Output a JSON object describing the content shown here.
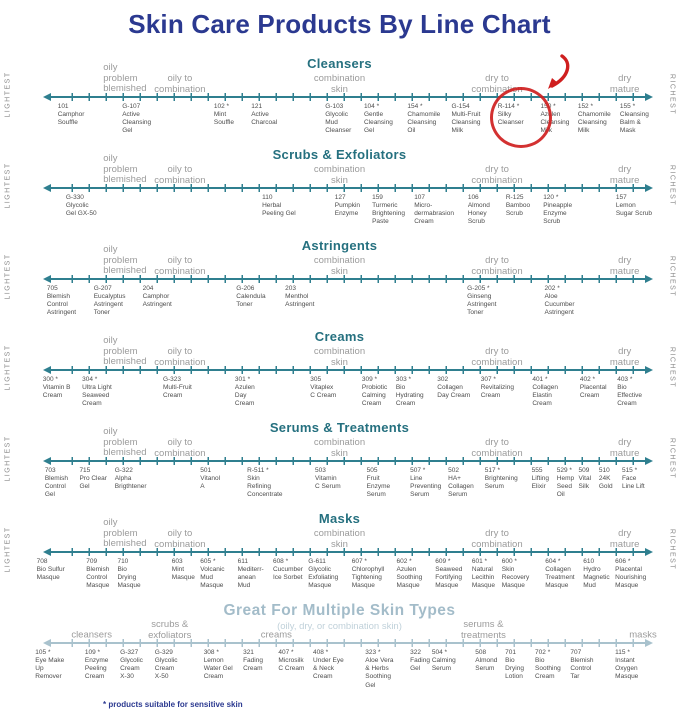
{
  "title": "Skin Care Products By Line Chart",
  "footnote": "* products suitable for sensitive skin",
  "axis_ends": {
    "left": "LIGHTEST",
    "right": "RICHEST"
  },
  "colors": {
    "title_navy": "#2b3990",
    "section_teal": "#25707f",
    "line_teal": "#2f7f8f",
    "zone_gray": "#9b9b9b",
    "product_text": "#4d4d4d",
    "light_blue": "#a3bcc9",
    "highlight_red": "#cf1f1f"
  },
  "annotation": {
    "type": "hand-drawn red circle with curved arrow",
    "section": "Cleansers",
    "highlighted_product": "R-114 *",
    "color": "#cf1f1f"
  },
  "zone_sets": {
    "skin_types": [
      {
        "label": "oily\nproblem\nblemished",
        "x": 15.2,
        "align": "left"
      },
      {
        "label": "oily to\ncombination",
        "x": 26.5
      },
      {
        "label": "combination\nskin",
        "x": 50
      },
      {
        "label": "dry to\ncombination",
        "x": 73.2
      },
      {
        "label": "dry\nmature",
        "x": 92
      }
    ],
    "product_categories": [
      {
        "label": "cleansers",
        "x": 13.5
      },
      {
        "label": "scrubs &\nexfoliators",
        "x": 25
      },
      {
        "label": "creams",
        "x": 40.7
      },
      {
        "label": "serums &\ntreatments",
        "x": 71.2
      },
      {
        "label": "masks",
        "x": 94.7
      }
    ]
  },
  "sections": [
    {
      "title": "Cleansers",
      "zones": "skin_types",
      "axis_ends": true,
      "highlight_product": "R-114 *",
      "products": [
        {
          "id": "101",
          "name": "Camphor\nSouffle",
          "x": 8.5
        },
        {
          "id": "G-107",
          "name": "Active\nCleansing\nGel",
          "x": 18.0
        },
        {
          "id": "102 *",
          "name": "Mint\nSouffle",
          "x": 31.5
        },
        {
          "id": "121",
          "name": "Active\nCharcoal",
          "x": 37.0
        },
        {
          "id": "G-103",
          "name": "Glycolic\nMud\nCleanser",
          "x": 47.9
        },
        {
          "id": "104 *",
          "name": "Gentle\nCleansing\nGel",
          "x": 53.6
        },
        {
          "id": "154 *",
          "name": "Chamomile\nCleansing\nOil",
          "x": 60.0
        },
        {
          "id": "G-154",
          "name": "Multi-Fruit\nCleansing\nMilk",
          "x": 66.5
        },
        {
          "id": "R-114 *",
          "name": "Silky\nCleanser",
          "x": 73.3
        },
        {
          "id": "150 *",
          "name": "Azulen\nCleansing\nMilk",
          "x": 79.6
        },
        {
          "id": "152 *",
          "name": "Chamomile\nCleansing\nMilk",
          "x": 85.1
        },
        {
          "id": "155 *",
          "name": "Cleansing\nBalm &\nMask",
          "x": 91.3
        }
      ]
    },
    {
      "title": "Scrubs & Exfoliators",
      "zones": "skin_types",
      "axis_ends": true,
      "products": [
        {
          "id": "G-330",
          "name": "Glycolic\nGel GX-50",
          "x": 9.7
        },
        {
          "id": "110",
          "name": "Herbal\nPeeling Gel",
          "x": 38.6
        },
        {
          "id": "127",
          "name": "Pumpkin\nEnzyme",
          "x": 49.3
        },
        {
          "id": "159",
          "name": "Turmeric\nBrightening\nPaste",
          "x": 54.8
        },
        {
          "id": "107",
          "name": "Micro-\ndermabrasion\nCream",
          "x": 61.0
        },
        {
          "id": "106",
          "name": "Almond\nHoney\nScrub",
          "x": 68.9
        },
        {
          "id": "R-125",
          "name": "Bamboo\nScrub",
          "x": 74.5
        },
        {
          "id": "120 *",
          "name": "Pineapple\nEnzyme\nScrub",
          "x": 80.0
        },
        {
          "id": "157",
          "name": "Lemon\nSugar Scrub",
          "x": 90.7
        }
      ]
    },
    {
      "title": "Astringents",
      "zones": "skin_types",
      "axis_ends": true,
      "products": [
        {
          "id": "705",
          "name": "Blemish\nControl\nAstringent",
          "x": 6.9
        },
        {
          "id": "G-207",
          "name": "Eucalyptus\nAstringent\nToner",
          "x": 13.8
        },
        {
          "id": "204",
          "name": "Camphor\nAstringent",
          "x": 21.0
        },
        {
          "id": "G-206",
          "name": "Calendula\nToner",
          "x": 34.8
        },
        {
          "id": "203",
          "name": "Menthol\nAstringent",
          "x": 42.0
        },
        {
          "id": "G-205 *",
          "name": "Ginseng\nAstringent\nToner",
          "x": 68.8
        },
        {
          "id": "202 *",
          "name": "Aloe\nCucumber\nAstringent",
          "x": 80.2
        }
      ]
    },
    {
      "title": "Creams",
      "zones": "skin_types",
      "axis_ends": true,
      "products": [
        {
          "id": "300 *",
          "name": "Vitamin B\nCream",
          "x": 6.3
        },
        {
          "id": "304 *",
          "name": "Ultra Light\nSeaweed\nCream",
          "x": 12.1
        },
        {
          "id": "G-323",
          "name": "Multi-Fruit\nCream",
          "x": 24.0
        },
        {
          "id": "301 *",
          "name": "Azulen\nDay\nCream",
          "x": 34.6
        },
        {
          "id": "305",
          "name": "Vitaplex\nC Cream",
          "x": 45.7
        },
        {
          "id": "309 *",
          "name": "Probiotic\nCalming\nCream",
          "x": 53.3
        },
        {
          "id": "303 *",
          "name": "Bio\nHydrating\nCream",
          "x": 58.3
        },
        {
          "id": "302",
          "name": "Collagen\nDay Cream",
          "x": 64.4
        },
        {
          "id": "307 *",
          "name": "Revitalizing\nCream",
          "x": 70.8
        },
        {
          "id": "401 *",
          "name": "Collagen\nElastin\nCream",
          "x": 78.4
        },
        {
          "id": "402 *",
          "name": "Placental\nCream",
          "x": 85.4
        },
        {
          "id": "403 *",
          "name": "Bio\nEffective\nCream",
          "x": 90.9
        }
      ]
    },
    {
      "title": "Serums & Treatments",
      "zones": "skin_types",
      "axis_ends": true,
      "products": [
        {
          "id": "703",
          "name": "Blemish\nControl\nGel",
          "x": 6.6
        },
        {
          "id": "715",
          "name": "Pro Clear\nGel",
          "x": 11.7
        },
        {
          "id": "G-322",
          "name": "Alpha\nBrigthtener",
          "x": 16.9
        },
        {
          "id": "501",
          "name": "Vitanol\nA",
          "x": 29.5
        },
        {
          "id": "R-511 *",
          "name": "Skin\nRefining\nConcentrate",
          "x": 36.4
        },
        {
          "id": "503",
          "name": "Vitamin\nC Serum",
          "x": 46.4
        },
        {
          "id": "505",
          "name": "Fruit\nEnzyme\nSerum",
          "x": 54.0
        },
        {
          "id": "507 *",
          "name": "Line\nPreventing\nSerum",
          "x": 60.4
        },
        {
          "id": "502",
          "name": "HA+\nCollagen\nSerum",
          "x": 66.0
        },
        {
          "id": "517 *",
          "name": "Brightening\nSerum",
          "x": 71.4
        },
        {
          "id": "555",
          "name": "Lifting\nElixir",
          "x": 78.3
        },
        {
          "id": "529 *",
          "name": "Hemp\nSeed\nOil",
          "x": 82.0
        },
        {
          "id": "509",
          "name": "Vital\nSilk",
          "x": 85.2
        },
        {
          "id": "510",
          "name": "24K\nGold",
          "x": 88.2
        },
        {
          "id": "515 *",
          "name": "Face\nLine Lift",
          "x": 91.6
        }
      ]
    },
    {
      "title": "Masks",
      "zones": "skin_types",
      "axis_ends": true,
      "products": [
        {
          "id": "708",
          "name": "Bio Sulfur\nMasque",
          "x": 5.4
        },
        {
          "id": "709",
          "name": "Blemish\nControl\nMasque",
          "x": 12.7
        },
        {
          "id": "710",
          "name": "Bio\nDrying\nMasque",
          "x": 17.3
        },
        {
          "id": "603",
          "name": "Mint\nMasque",
          "x": 25.3
        },
        {
          "id": "605 *",
          "name": "Volcanic\nMud\nMasque",
          "x": 29.5
        },
        {
          "id": "611",
          "name": "Mediterr-\nanean\nMud",
          "x": 35.0
        },
        {
          "id": "608 *",
          "name": "Cucumber\nIce Sorbet",
          "x": 40.2
        },
        {
          "id": "G-611",
          "name": "Glycolic\nExfoliating\nMasque",
          "x": 45.4
        },
        {
          "id": "607 *",
          "name": "Chlorophyll\nTightening\nMasque",
          "x": 51.8
        },
        {
          "id": "602 *",
          "name": "Azulen\nSoothing\nMasque",
          "x": 58.4
        },
        {
          "id": "609 *",
          "name": "Seaweed\nFortifying\nMasque",
          "x": 64.1
        },
        {
          "id": "601 *",
          "name": "Natural\nLecithin\nMasque",
          "x": 69.5
        },
        {
          "id": "600 *",
          "name": "Skin\nRecovery\nMasque",
          "x": 73.9
        },
        {
          "id": "604 *",
          "name": "Collagen\nTreatment\nMasque",
          "x": 80.3
        },
        {
          "id": "610",
          "name": "Hydro\nMagnetic\nMud",
          "x": 85.9
        },
        {
          "id": "606 *",
          "name": "Placental\nNourishing\nMasque",
          "x": 90.6
        }
      ]
    },
    {
      "title": "Great For Multiple Skin Types",
      "subtitle": "(oily, dry, or combination skin)",
      "zones": "product_categories",
      "axis_ends": false,
      "light": true,
      "products": [
        {
          "id": "105 *",
          "name": "Eye Make\nUp\nRemover",
          "x": 5.2
        },
        {
          "id": "109 *",
          "name": "Enzyme\nPeeling\nCream",
          "x": 12.5
        },
        {
          "id": "G-327",
          "name": "Glycolic\nCream\nX-30",
          "x": 17.7
        },
        {
          "id": "G-329",
          "name": "Glycolic\nCream\nX-50",
          "x": 22.8
        },
        {
          "id": "308 *",
          "name": "Lemon\nWater Gel\nCream",
          "x": 30.0
        },
        {
          "id": "321",
          "name": "Fading\nCream",
          "x": 35.8
        },
        {
          "id": "407 *",
          "name": "Microsilk\nC Cream",
          "x": 41.0
        },
        {
          "id": "408 *",
          "name": "Under Eye\n& Neck\nCream",
          "x": 46.1
        },
        {
          "id": "323 *",
          "name": "Aloe Vera\n& Herbs\nSoothing\nGel",
          "x": 53.8
        },
        {
          "id": "322",
          "name": "Fading\nGel",
          "x": 60.4
        },
        {
          "id": "504 *",
          "name": "Calming\nSerum",
          "x": 63.6
        },
        {
          "id": "508",
          "name": "Almond\nSerum",
          "x": 70.0
        },
        {
          "id": "701",
          "name": "Bio\nDrying\nLotion",
          "x": 74.4
        },
        {
          "id": "702 *",
          "name": "Bio\nSoothing\nCream",
          "x": 78.8
        },
        {
          "id": "707",
          "name": "Blemish\nControl\nTar",
          "x": 84.0
        },
        {
          "id": "115 *",
          "name": "Instant\nOxygen\nMasque",
          "x": 90.6
        }
      ]
    }
  ]
}
